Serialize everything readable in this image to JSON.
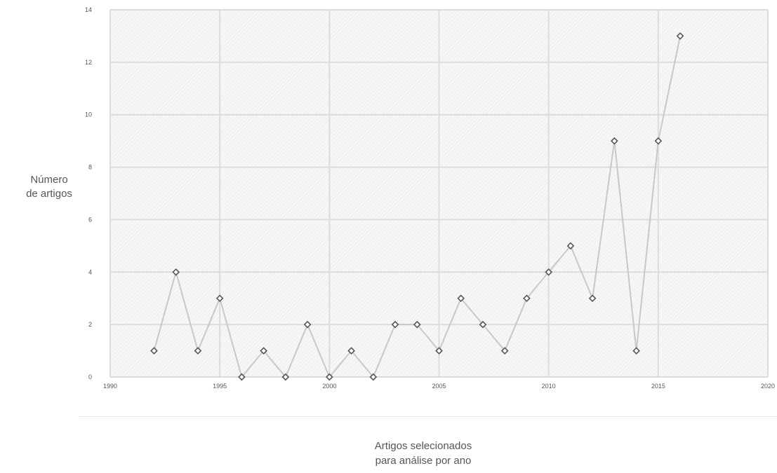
{
  "chart_data": {
    "type": "line",
    "ylabel": [
      "Número",
      "de artigos"
    ],
    "xlabel": [
      "Artigos selecionados",
      "para análise por ano"
    ],
    "xlim": [
      1990,
      2020
    ],
    "ylim": [
      0,
      14
    ],
    "x_ticks": [
      1990,
      1995,
      2000,
      2005,
      2010,
      2015,
      2020
    ],
    "y_ticks": [
      0,
      2,
      4,
      6,
      8,
      10,
      12,
      14
    ],
    "grid": true,
    "series": [
      {
        "x": [
          1992,
          1993,
          1994,
          1995,
          1996,
          1997,
          1998,
          1999,
          2000,
          2001,
          2002,
          2003,
          2004,
          2005,
          2006,
          2007,
          2008,
          2009,
          2010,
          2011,
          2012,
          2013,
          2014,
          2015,
          2016
        ],
        "values": [
          1,
          4,
          1,
          3,
          0,
          1,
          0,
          2,
          0,
          1,
          0,
          2,
          2,
          1,
          3,
          2,
          1,
          3,
          4,
          5,
          3,
          9,
          1,
          9,
          13
        ]
      }
    ]
  }
}
